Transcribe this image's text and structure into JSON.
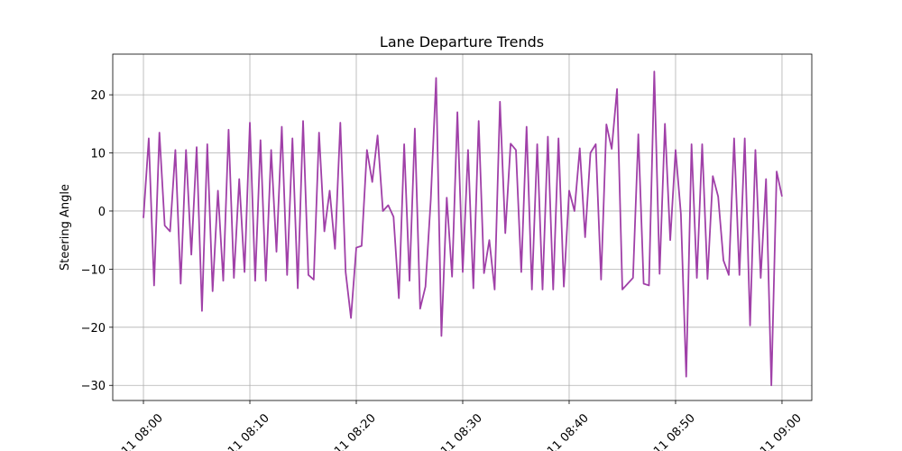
{
  "chart_data": {
    "type": "line",
    "title": "Lane Departure Trends",
    "y_label": "Steering Angle",
    "color": "#a040a8",
    "grid": true,
    "xlim": [
      "07:57:07",
      "09:02:48"
    ],
    "xticks": [
      {
        "value": "08:00:00",
        "label": "11 08:00"
      },
      {
        "value": "08:10:00",
        "label": "11 08:10"
      },
      {
        "value": "08:20:00",
        "label": "11 08:20"
      },
      {
        "value": "08:30:00",
        "label": "11 08:30"
      },
      {
        "value": "08:40:00",
        "label": "11 08:40"
      },
      {
        "value": "08:50:00",
        "label": "11 08:50"
      },
      {
        "value": "09:00:00",
        "label": "11 09:00"
      }
    ],
    "ylim": [
      -32.6,
      27.0
    ],
    "yticks": [
      {
        "value": -30,
        "label": "−30"
      },
      {
        "value": -20,
        "label": "−20"
      },
      {
        "value": -10,
        "label": "−10"
      },
      0,
      10,
      20
    ],
    "x": [
      "08:00:00",
      "08:00:30",
      "08:01:00",
      "08:01:30",
      "08:02:00",
      "08:02:30",
      "08:03:00",
      "08:03:30",
      "08:04:00",
      "08:04:30",
      "08:05:00",
      "08:05:30",
      "08:06:00",
      "08:06:30",
      "08:07:00",
      "08:07:30",
      "08:08:00",
      "08:08:30",
      "08:09:00",
      "08:09:30",
      "08:10:00",
      "08:10:30",
      "08:11:00",
      "08:11:30",
      "08:12:00",
      "08:12:30",
      "08:13:00",
      "08:13:30",
      "08:14:00",
      "08:14:30",
      "08:15:00",
      "08:15:30",
      "08:16:00",
      "08:16:30",
      "08:17:00",
      "08:17:30",
      "08:18:00",
      "08:18:30",
      "08:19:00",
      "08:19:30",
      "08:20:00",
      "08:20:30",
      "08:21:00",
      "08:21:30",
      "08:22:00",
      "08:22:30",
      "08:23:00",
      "08:23:30",
      "08:24:00",
      "08:24:30",
      "08:25:00",
      "08:25:30",
      "08:26:00",
      "08:26:30",
      "08:27:00",
      "08:27:30",
      "08:28:00",
      "08:28:30",
      "08:29:00",
      "08:29:30",
      "08:30:00",
      "08:30:30",
      "08:31:00",
      "08:31:30",
      "08:32:00",
      "08:32:30",
      "08:33:00",
      "08:33:30",
      "08:34:00",
      "08:34:30",
      "08:35:00",
      "08:35:30",
      "08:36:00",
      "08:36:30",
      "08:37:00",
      "08:37:30",
      "08:38:00",
      "08:38:30",
      "08:39:00",
      "08:39:30",
      "08:40:00",
      "08:40:30",
      "08:41:00",
      "08:41:30",
      "08:42:00",
      "08:42:30",
      "08:43:00",
      "08:43:30",
      "08:44:00",
      "08:44:30",
      "08:45:00",
      "08:45:30",
      "08:46:00",
      "08:46:30",
      "08:47:00",
      "08:47:30",
      "08:48:00",
      "08:48:30",
      "08:49:00",
      "08:49:30",
      "08:50:00",
      "08:50:30",
      "08:51:00",
      "08:51:30",
      "08:52:00",
      "08:52:30",
      "08:53:00",
      "08:53:30",
      "08:54:00",
      "08:54:30",
      "08:55:00",
      "08:55:30",
      "08:56:00",
      "08:56:30",
      "08:57:00",
      "08:57:30",
      "08:58:00",
      "08:58:30",
      "08:59:00",
      "08:59:30",
      "09:00:00"
    ],
    "values": [
      -1.2,
      12.5,
      -12.8,
      13.5,
      -2.5,
      -3.5,
      10.5,
      -12.5,
      10.5,
      -7.5,
      11,
      -17.2,
      11.5,
      -13.8,
      3.5,
      -12,
      14,
      -11.5,
      5.5,
      -10.5,
      15.2,
      -12,
      12.2,
      -12,
      10.5,
      -7,
      14.5,
      -11,
      12.5,
      -13.3,
      15.5,
      -11,
      -11.8,
      13.5,
      -3.5,
      3.5,
      -6.5,
      15.2,
      -10.5,
      -18.4,
      -6.3,
      -6,
      10.5,
      5,
      13,
      0,
      1,
      -1,
      -15,
      11.5,
      -12,
      14.2,
      -16.8,
      -13,
      2,
      22.9,
      -21.5,
      2.3,
      -11.3,
      17,
      -10.5,
      10.5,
      -13.3,
      15.5,
      -10.7,
      -5,
      -13.5,
      18.8,
      -3.8,
      11.6,
      10.5,
      -10.5,
      14.5,
      -13.5,
      11.5,
      -13.5,
      12.8,
      -13.5,
      12.5,
      -13,
      3.5,
      0,
      10.8,
      -4.5,
      10,
      11.5,
      -11.8,
      14.9,
      10.7,
      21,
      -13.5,
      -12.5,
      -11.5,
      13.2,
      -12.5,
      -12.8,
      24,
      -10.8,
      15,
      -5,
      10.5,
      -0.5,
      -28.5,
      11.5,
      -11.5,
      11.5,
      -11.7,
      6,
      2.5,
      -8.5,
      -11,
      12.5,
      -11,
      12.5,
      -19.7,
      10.5,
      -11.5,
      5.5,
      -30,
      6.8,
      2.5
    ]
  }
}
